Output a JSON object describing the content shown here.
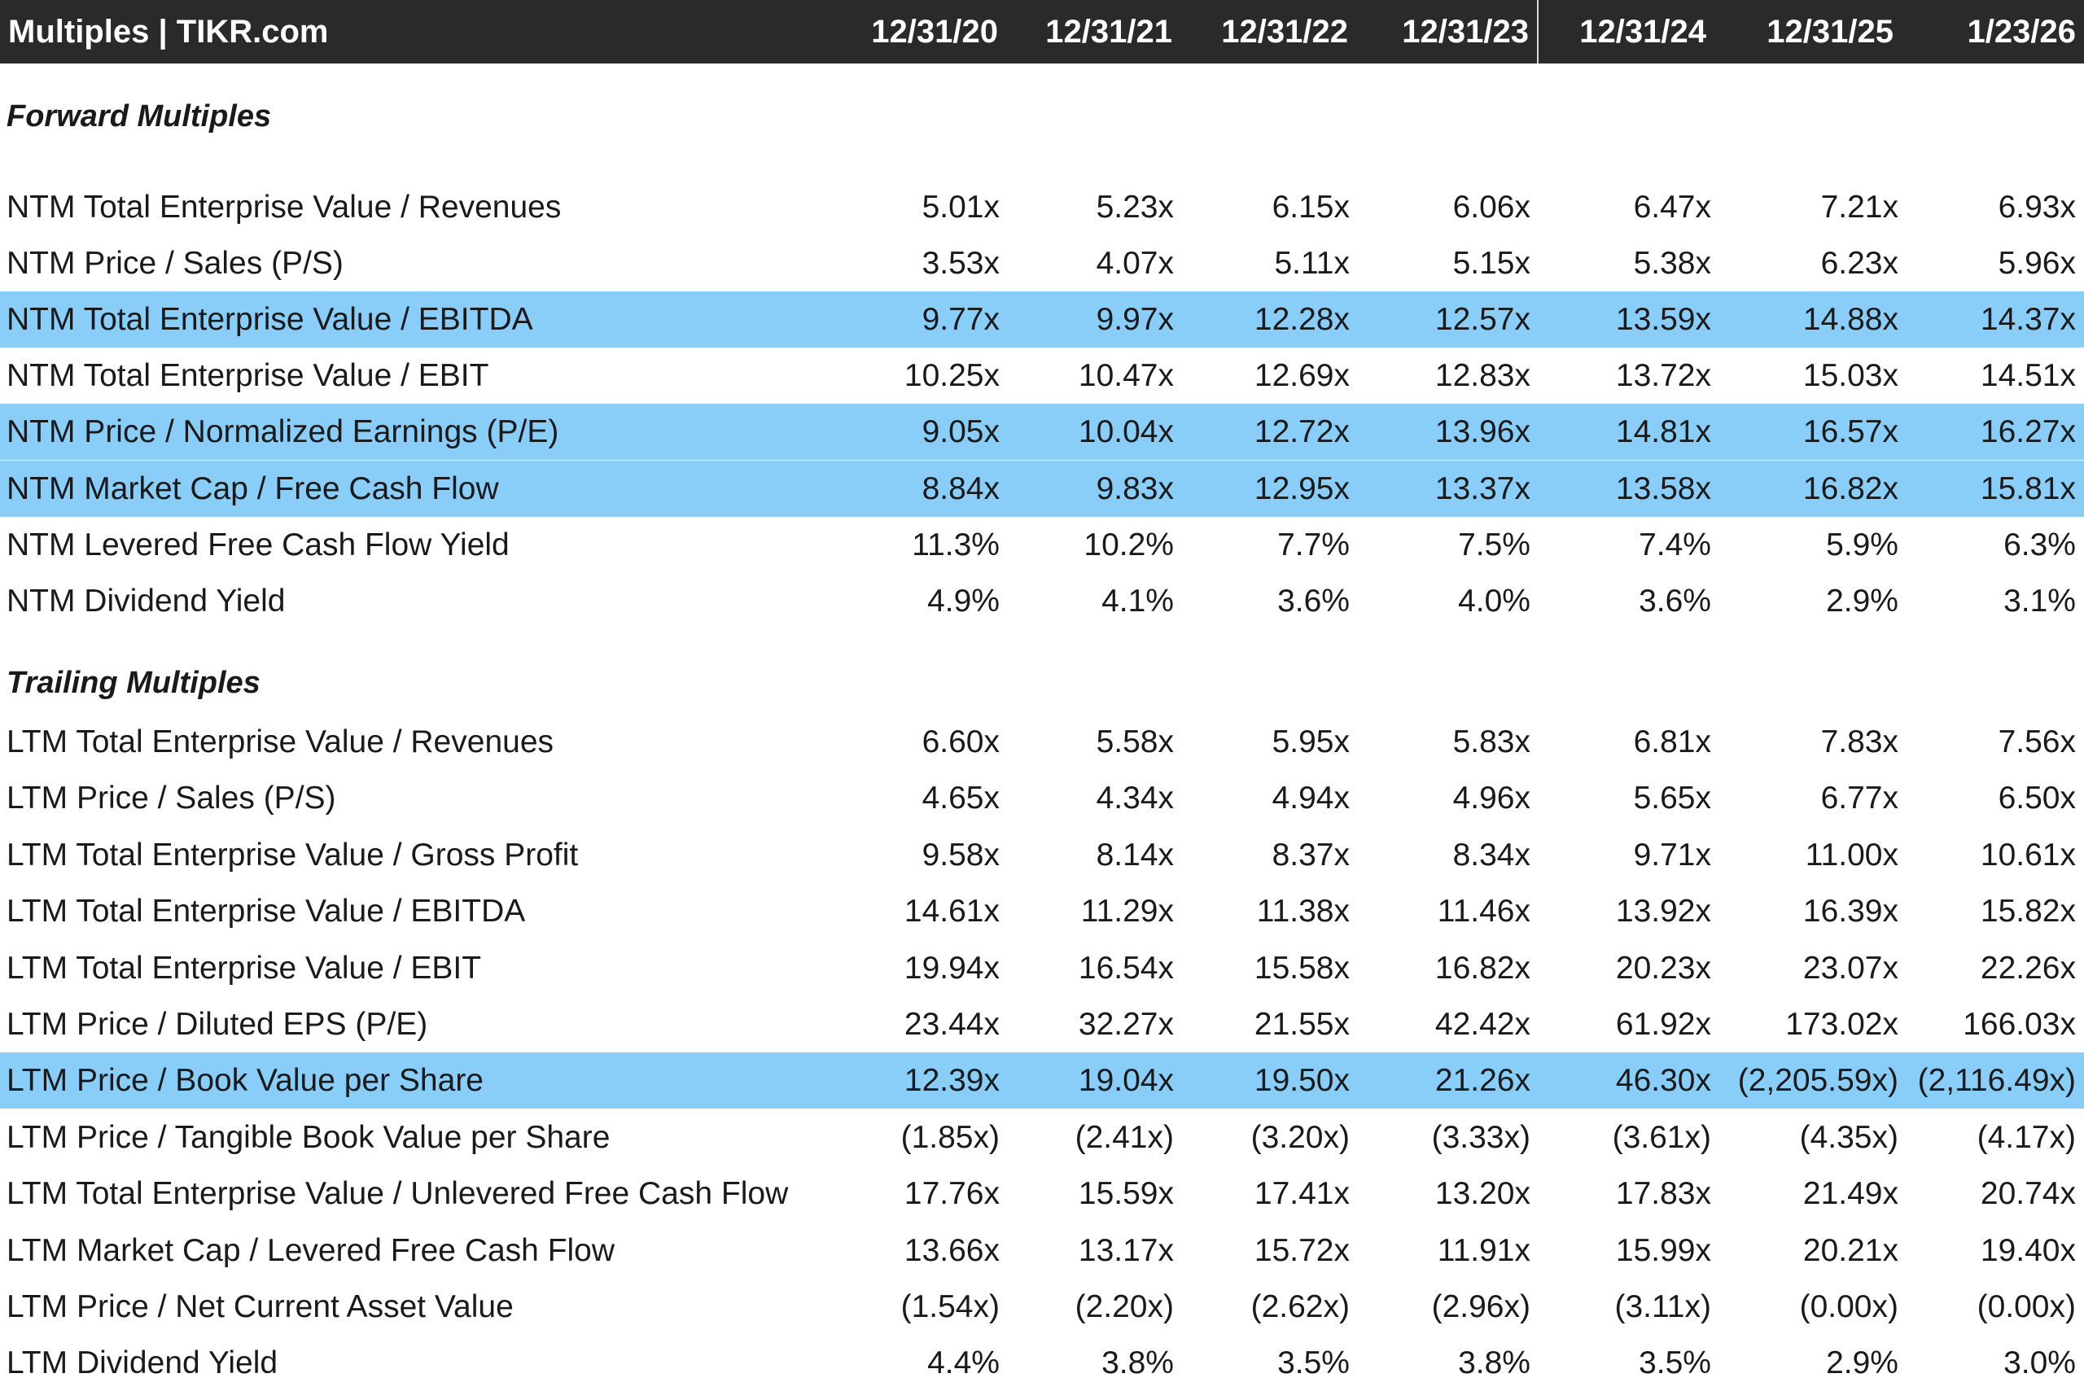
{
  "header": {
    "title": "Multiples | TIKR.com",
    "columns": [
      "12/31/20",
      "12/31/21",
      "12/31/22",
      "12/31/23",
      "12/31/24",
      "12/31/25",
      "1/23/26"
    ]
  },
  "colors": {
    "header_bg": "#2a2a2a",
    "highlight": "#89cdf9"
  },
  "forward": {
    "title": "Forward Multiples",
    "rows": [
      {
        "label": "NTM Total Enterprise Value / Revenues",
        "values": [
          "5.01x",
          "5.23x",
          "6.15x",
          "6.06x",
          "6.47x",
          "7.21x",
          "6.93x"
        ],
        "highlighted": false
      },
      {
        "label": "NTM Price / Sales (P/S)",
        "values": [
          "3.53x",
          "4.07x",
          "5.11x",
          "5.15x",
          "5.38x",
          "6.23x",
          "5.96x"
        ],
        "highlighted": false
      },
      {
        "label": "NTM Total Enterprise Value / EBITDA",
        "values": [
          "9.77x",
          "9.97x",
          "12.28x",
          "12.57x",
          "13.59x",
          "14.88x",
          "14.37x"
        ],
        "highlighted": true
      },
      {
        "label": "NTM Total Enterprise Value / EBIT",
        "values": [
          "10.25x",
          "10.47x",
          "12.69x",
          "12.83x",
          "13.72x",
          "15.03x",
          "14.51x"
        ],
        "highlighted": false
      },
      {
        "label": "NTM Price / Normalized Earnings (P/E)",
        "values": [
          "9.05x",
          "10.04x",
          "12.72x",
          "13.96x",
          "14.81x",
          "16.57x",
          "16.27x"
        ],
        "highlighted": true
      },
      {
        "label": "NTM Market Cap / Free Cash Flow",
        "values": [
          "8.84x",
          "9.83x",
          "12.95x",
          "13.37x",
          "13.58x",
          "16.82x",
          "15.81x"
        ],
        "highlighted": true
      },
      {
        "label": "NTM Levered Free Cash Flow Yield",
        "values": [
          "11.3%",
          "10.2%",
          "7.7%",
          "7.5%",
          "7.4%",
          "5.9%",
          "6.3%"
        ],
        "highlighted": false
      },
      {
        "label": "NTM Dividend Yield",
        "values": [
          "4.9%",
          "4.1%",
          "3.6%",
          "4.0%",
          "3.6%",
          "2.9%",
          "3.1%"
        ],
        "highlighted": false
      }
    ]
  },
  "trailing": {
    "title": "Trailing Multiples",
    "rows": [
      {
        "label": "LTM Total Enterprise Value / Revenues",
        "values": [
          "6.60x",
          "5.58x",
          "5.95x",
          "5.83x",
          "6.81x",
          "7.83x",
          "7.56x"
        ],
        "highlighted": false
      },
      {
        "label": "LTM Price / Sales (P/S)",
        "values": [
          "4.65x",
          "4.34x",
          "4.94x",
          "4.96x",
          "5.65x",
          "6.77x",
          "6.50x"
        ],
        "highlighted": false
      },
      {
        "label": "LTM Total Enterprise Value / Gross Profit",
        "values": [
          "9.58x",
          "8.14x",
          "8.37x",
          "8.34x",
          "9.71x",
          "11.00x",
          "10.61x"
        ],
        "highlighted": false
      },
      {
        "label": "LTM Total Enterprise Value / EBITDA",
        "values": [
          "14.61x",
          "11.29x",
          "11.38x",
          "11.46x",
          "13.92x",
          "16.39x",
          "15.82x"
        ],
        "highlighted": false
      },
      {
        "label": "LTM Total Enterprise Value / EBIT",
        "values": [
          "19.94x",
          "16.54x",
          "15.58x",
          "16.82x",
          "20.23x",
          "23.07x",
          "22.26x"
        ],
        "highlighted": false
      },
      {
        "label": "LTM Price / Diluted EPS (P/E)",
        "values": [
          "23.44x",
          "32.27x",
          "21.55x",
          "42.42x",
          "61.92x",
          "173.02x",
          "166.03x"
        ],
        "highlighted": false
      },
      {
        "label": "LTM Price / Book Value per Share",
        "values": [
          "12.39x",
          "19.04x",
          "19.50x",
          "21.26x",
          "46.30x",
          "(2,205.59x)",
          "(2,116.49x)"
        ],
        "highlighted": true
      },
      {
        "label": "LTM Price / Tangible Book Value per Share",
        "values": [
          "(1.85x)",
          "(2.41x)",
          "(3.20x)",
          "(3.33x)",
          "(3.61x)",
          "(4.35x)",
          "(4.17x)"
        ],
        "highlighted": false
      },
      {
        "label": "LTM Total Enterprise Value / Unlevered Free Cash Flow",
        "values": [
          "17.76x",
          "15.59x",
          "17.41x",
          "13.20x",
          "17.83x",
          "21.49x",
          "20.74x"
        ],
        "highlighted": false
      },
      {
        "label": "LTM Market Cap / Levered Free Cash Flow",
        "values": [
          "13.66x",
          "13.17x",
          "15.72x",
          "11.91x",
          "15.99x",
          "20.21x",
          "19.40x"
        ],
        "highlighted": false
      },
      {
        "label": "LTM Price / Net Current Asset Value",
        "values": [
          "(1.54x)",
          "(2.20x)",
          "(2.62x)",
          "(2.96x)",
          "(3.11x)",
          "(0.00x)",
          "(0.00x)"
        ],
        "highlighted": false
      },
      {
        "label": "LTM Dividend Yield",
        "values": [
          "4.4%",
          "3.8%",
          "3.5%",
          "3.8%",
          "3.5%",
          "2.9%",
          "3.0%"
        ],
        "highlighted": false
      }
    ]
  }
}
